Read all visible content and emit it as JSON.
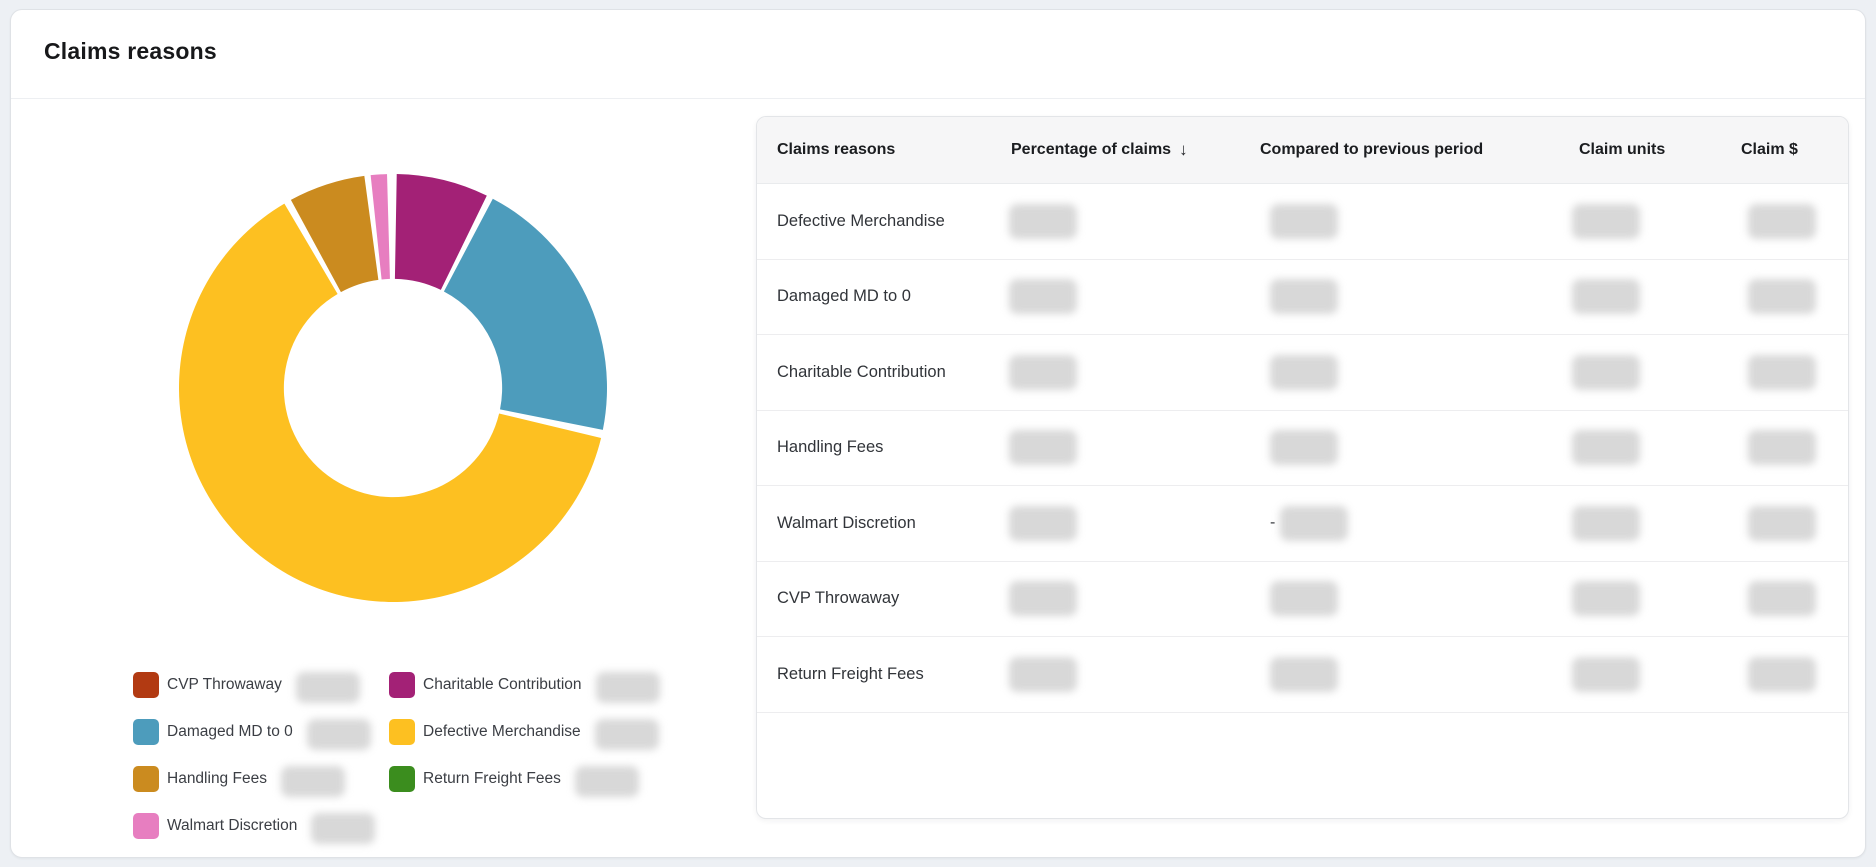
{
  "panel": {
    "title": "Claims reasons"
  },
  "chart_data": {
    "type": "donut",
    "title": "Claims reasons",
    "inner_radius_ratio": 0.51,
    "legend_position": "bottom-left",
    "values_redacted": true,
    "slices": [
      {
        "label": "CVP Throwaway",
        "color": "#b23a12",
        "percent_est": 0,
        "visible": false
      },
      {
        "label": "Charitable Contribution",
        "color": "#a32176",
        "percent_est": 7,
        "visible": true,
        "start_deg": 1,
        "end_deg": 26
      },
      {
        "label": "Damaged MD to 0",
        "color": "#4d9cbc",
        "percent_est": 20.5,
        "visible": true,
        "start_deg": 27.8,
        "end_deg": 101.3
      },
      {
        "label": "Defective Merchandise",
        "color": "#fdc021",
        "percent_est": 63,
        "visible": true,
        "start_deg": 103.5,
        "end_deg": 329.5
      },
      {
        "label": "Handling Fees",
        "color": "#cb8b1f",
        "percent_est": 6,
        "visible": true,
        "start_deg": 331.5,
        "end_deg": 352.3
      },
      {
        "label": "Return Freight Fees",
        "color": "#3b8d1e",
        "percent_est": 0,
        "visible": false
      },
      {
        "label": "Walmart Discretion",
        "color": "#e77ec0",
        "percent_est": 1.5,
        "visible": true,
        "start_deg": 354,
        "end_deg": 358.4
      }
    ],
    "legend_order": [
      "CVP Throwaway",
      "Charitable Contribution",
      "Damaged MD to 0",
      "Defective Merchandise",
      "Handling Fees",
      "Return Freight Fees",
      "Walmart Discretion"
    ]
  },
  "table": {
    "values_redacted": true,
    "columns": [
      {
        "label": "Claims reasons"
      },
      {
        "label": "Percentage of claims",
        "sort": "desc",
        "sort_icon": "↓"
      },
      {
        "label": "Compared to previous period"
      },
      {
        "label": "Claim units"
      },
      {
        "label": "Claim $"
      }
    ],
    "rows": [
      {
        "reason": "Defective Merchandise"
      },
      {
        "reason": "Damaged MD to 0"
      },
      {
        "reason": "Charitable Contribution"
      },
      {
        "reason": "Handling Fees"
      },
      {
        "reason": "Walmart Discretion",
        "compared_prefix": "-"
      },
      {
        "reason": "CVP Throwaway"
      },
      {
        "reason": "Return Freight Fees"
      }
    ]
  }
}
